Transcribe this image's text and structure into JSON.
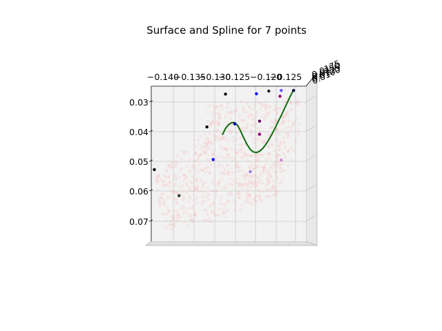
{
  "chart_data": {
    "type": "scatter",
    "title": "Surface and Spline for 7 points",
    "x_tick_labels": [
      "−0.140",
      "−0.135",
      "−0.130",
      "−0.125",
      "−0.120",
      "−0.125"
    ],
    "y_tick_labels": [
      "0.03",
      "0.04",
      "0.05",
      "0.06",
      "0.07"
    ],
    "z_tick_labels": [
      "0.0175",
      "0.0150",
      "0.0125",
      "0.0100"
    ],
    "xlim": [
      -0.1425,
      -0.1175
    ],
    "ylim": [
      0.027,
      0.078
    ],
    "grid": true,
    "points": [
      {
        "x": -0.1305,
        "y": 0.0296,
        "color": "#000000"
      },
      {
        "x": -0.1255,
        "y": 0.0295,
        "color": "#0000ff"
      },
      {
        "x": -0.1235,
        "y": 0.0286,
        "color": "#222222"
      },
      {
        "x": -0.1215,
        "y": 0.0284,
        "color": "#6655ff"
      },
      {
        "x": -0.1195,
        "y": 0.0284,
        "color": "#000033"
      },
      {
        "x": -0.1217,
        "y": 0.0303,
        "color": "#990066"
      },
      {
        "x": -0.1335,
        "y": 0.0404,
        "color": "#000000"
      },
      {
        "x": -0.129,
        "y": 0.0394,
        "color": "#0000cc"
      },
      {
        "x": -0.125,
        "y": 0.0385,
        "color": "#660066"
      },
      {
        "x": -0.125,
        "y": 0.0428,
        "color": "#880088"
      },
      {
        "x": -0.142,
        "y": 0.0544,
        "color": "#000000"
      },
      {
        "x": -0.1325,
        "y": 0.0511,
        "color": "#0000ff"
      },
      {
        "x": -0.138,
        "y": 0.063,
        "color": "#333333"
      },
      {
        "x": -0.1265,
        "y": 0.0551,
        "color": "#9977dd"
      },
      {
        "x": -0.1215,
        "y": 0.0513,
        "color": "#cc88cc"
      }
    ],
    "spline": {
      "color": "#0e6b0e",
      "x": [
        -0.131,
        -0.1305,
        -0.13,
        -0.1295,
        -0.129,
        -0.1285,
        -0.128,
        -0.1275,
        -0.127,
        -0.1265,
        -0.126,
        -0.1255,
        -0.125,
        -0.1245,
        -0.124,
        -0.1235,
        -0.123,
        -0.1225,
        -0.122,
        -0.1215,
        -0.121,
        -0.1205,
        -0.12,
        -0.1195
      ],
      "y": [
        0.043,
        0.0409,
        0.0396,
        0.039,
        0.039,
        0.04,
        0.042,
        0.0442,
        0.0462,
        0.0478,
        0.0486,
        0.0488,
        0.0484,
        0.0475,
        0.0462,
        0.0446,
        0.0428,
        0.0408,
        0.0387,
        0.0366,
        0.0345,
        0.0323,
        0.0302,
        0.0282
      ]
    }
  }
}
